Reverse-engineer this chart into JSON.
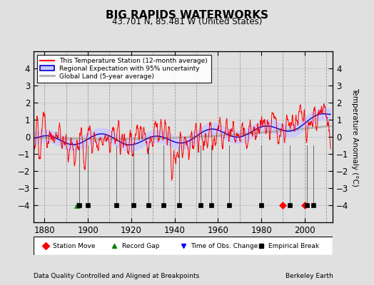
{
  "title": "BIG RAPIDS WATERWORKS",
  "subtitle": "43.701 N, 85.481 W (United States)",
  "xlabel_left": "Data Quality Controlled and Aligned at Breakpoints",
  "xlabel_right": "Berkeley Earth",
  "ylabel": "Temperature Anomaly (°C)",
  "xlim": [
    1875,
    2013
  ],
  "ylim": [
    -5,
    5
  ],
  "yticks": [
    -4,
    -3,
    -2,
    -1,
    0,
    1,
    2,
    3,
    4
  ],
  "xticks": [
    1880,
    1900,
    1920,
    1940,
    1960,
    1980,
    2000
  ],
  "bg_color": "#e0e0e0",
  "uncertainty_color": "#c8c8ff",
  "station_color": "#ff0000",
  "regional_color": "#0000cc",
  "global_color": "#b0b0b0",
  "legend_labels": [
    "This Temperature Station (12-month average)",
    "Regional Expectation with 95% uncertainty",
    "Global Land (5-year average)"
  ],
  "station_move_years": [
    1990,
    2000
  ],
  "record_gap_years": [
    1895
  ],
  "obs_change_years": [],
  "empirical_break_years": [
    1896,
    1900,
    1913,
    1921,
    1928,
    1935,
    1942,
    1952,
    1957,
    1965,
    1980,
    1993,
    2001,
    2004
  ],
  "seed": 123
}
